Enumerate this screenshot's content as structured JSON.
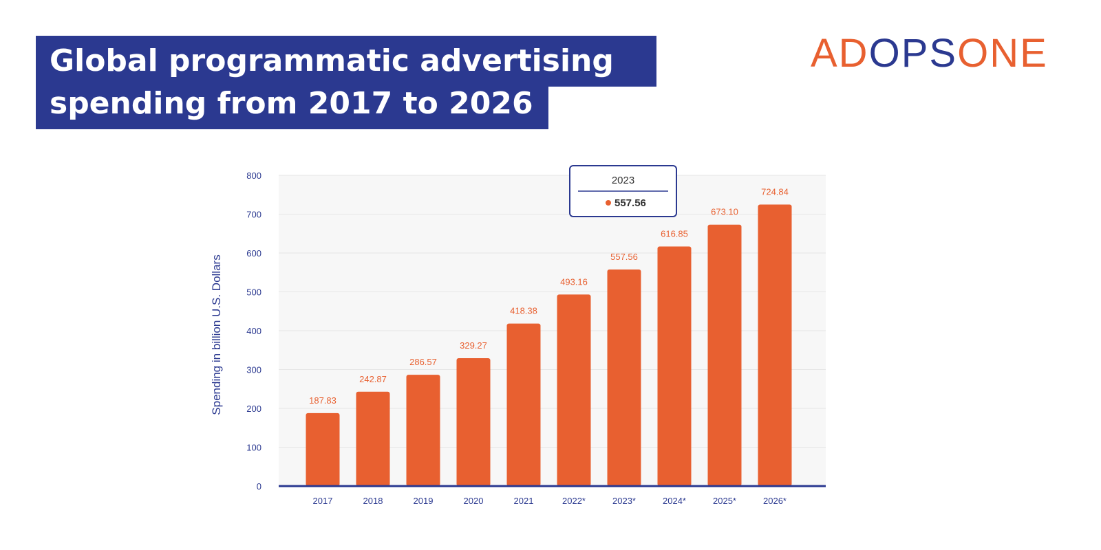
{
  "header": {
    "title_line1": "Global programmatic advertising",
    "title_line2": "spending from 2017 to 2026",
    "logo_part1": "AD",
    "logo_part2": "OPS",
    "logo_part3": "ONE"
  },
  "colors": {
    "bar": "#e86030",
    "title_bg": "#2b3990",
    "axis": "#2b3990",
    "plot_bg": "#f7f7f7"
  },
  "chart_data": {
    "type": "bar",
    "title": "Global programmatic advertising spending from 2017 to 2026",
    "xlabel": "",
    "ylabel": "Spending in billion U.S. Dollars",
    "categories": [
      "2017",
      "2018",
      "2019",
      "2020",
      "2021",
      "2022*",
      "2023*",
      "2024*",
      "2025*",
      "2026*"
    ],
    "values": [
      187.83,
      242.87,
      286.57,
      329.27,
      418.38,
      493.16,
      557.56,
      616.85,
      673.1,
      724.84
    ],
    "value_labels": [
      "187.83",
      "242.87",
      "286.57",
      "329.27",
      "418.38",
      "493.16",
      "557.56",
      "616.85",
      "673.10",
      "724.84"
    ],
    "ylim": [
      0,
      800
    ],
    "yticks": [
      0,
      100,
      200,
      300,
      400,
      500,
      600,
      700,
      800
    ],
    "grid": true,
    "tooltip": {
      "title": "2023",
      "value": "557.56"
    }
  }
}
